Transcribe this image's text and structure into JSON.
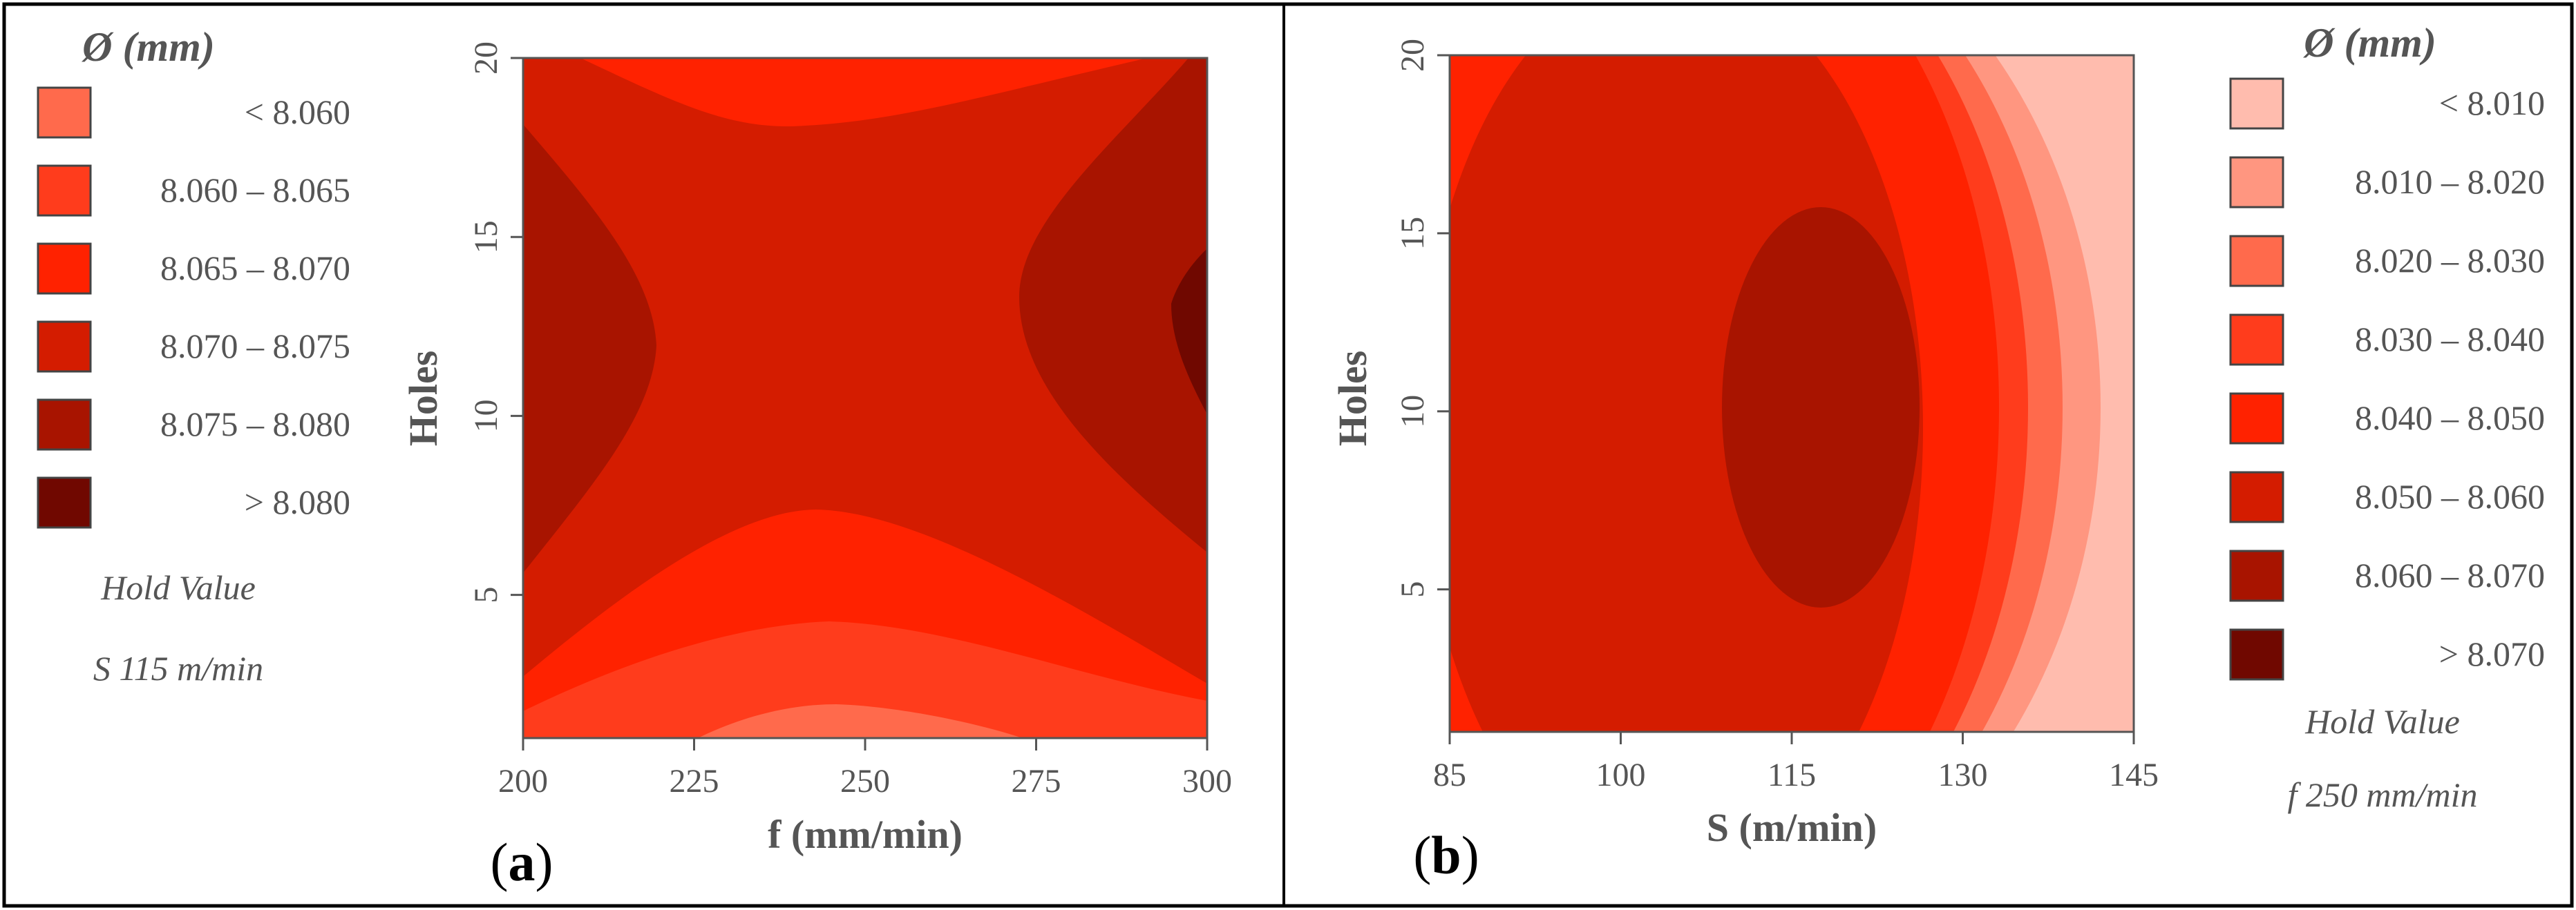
{
  "panel_a": {
    "letter": "a",
    "legend_title": "Ø (mm)",
    "legend": [
      {
        "label": "< 8.060",
        "color": "#ff6a4c"
      },
      {
        "label": "8.060 – 8.065",
        "color": "#ff3c1c"
      },
      {
        "label": "8.065 – 8.070",
        "color": "#ff2200"
      },
      {
        "label": "8.070 – 8.075",
        "color": "#d41c00"
      },
      {
        "label": "8.075 – 8.080",
        "color": "#a81400"
      },
      {
        "label": "> 8.080",
        "color": "#700800"
      }
    ],
    "hold_label": "Hold Value",
    "hold_value": "S 115 m/min"
  },
  "panel_b": {
    "letter": "b",
    "legend_title": "Ø (mm)",
    "legend": [
      {
        "label": "< 8.010",
        "color": "#ffbcae"
      },
      {
        "label": "8.010 – 8.020",
        "color": "#ff9680"
      },
      {
        "label": "8.020 – 8.030",
        "color": "#ff6a4c"
      },
      {
        "label": "8.030 – 8.040",
        "color": "#ff3c1c"
      },
      {
        "label": "8.040 – 8.050",
        "color": "#ff2200"
      },
      {
        "label": "8.050 – 8.060",
        "color": "#d41c00"
      },
      {
        "label": "8.060 – 8.070",
        "color": "#a81400"
      },
      {
        "label": "> 8.070",
        "color": "#700800"
      }
    ],
    "hold_label": "Hold Value",
    "hold_value": "f 250 mm/min"
  },
  "chart_data": [
    {
      "type": "heatmap",
      "title": "",
      "xlabel": "f (mm/min)",
      "ylabel": "Holes",
      "x_ticks": [
        "200",
        "225",
        "250",
        "275",
        "300"
      ],
      "y_ticks": [
        "5",
        "10",
        "15",
        "20"
      ],
      "xlim": [
        200,
        300
      ],
      "ylim": [
        1,
        20
      ],
      "z_label": "Ø (mm)",
      "z_levels": [
        8.06,
        8.065,
        8.07,
        8.075,
        8.08
      ],
      "dominant_region": "8.070 – 8.075"
    },
    {
      "type": "heatmap",
      "title": "",
      "xlabel": "S (m/min)",
      "ylabel": "Holes",
      "x_ticks": [
        "85",
        "100",
        "115",
        "130",
        "145"
      ],
      "y_ticks": [
        "5",
        "10",
        "15",
        "20"
      ],
      "xlim": [
        85,
        145
      ],
      "ylim": [
        1,
        20
      ],
      "z_label": "Ø (mm)",
      "z_levels": [
        8.01,
        8.02,
        8.03,
        8.04,
        8.05,
        8.06,
        8.07
      ],
      "dominant_region": "8.050 – 8.060"
    }
  ]
}
